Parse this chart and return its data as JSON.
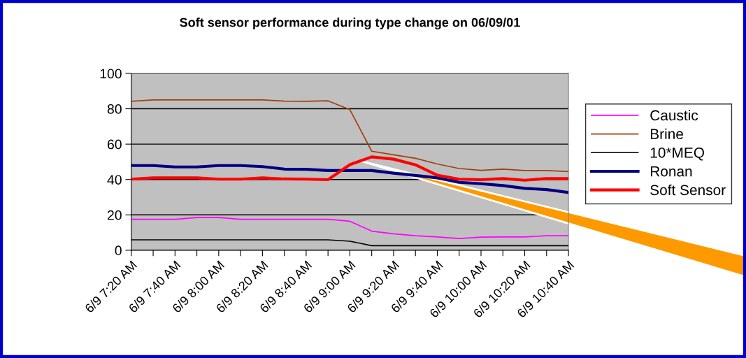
{
  "chart_data": {
    "type": "line",
    "title": "Soft sensor performance during type change on 06/09/01",
    "categories": [
      "6/9 7:20 AM",
      null,
      "6/9 7:40 AM",
      null,
      "6/9 8:00 AM",
      null,
      "6/9 8:20 AM",
      null,
      "6/9 8:40 AM",
      null,
      "6/9 9:00 AM",
      null,
      "6/9 9:20 AM",
      null,
      "6/9 9:40 AM",
      null,
      "6/9 10:00 AM",
      null,
      "6/9 10:20 AM",
      null,
      "6/9 10:40 AM"
    ],
    "ylim": [
      0,
      100
    ],
    "yticks": [
      0,
      20,
      40,
      60,
      80,
      100
    ],
    "grid": "y",
    "legend": "right",
    "marker": "none",
    "line_style": "solid",
    "series": [
      {
        "name": "Caustic",
        "color": "#ff00ff",
        "values": [
          17.5,
          17.5,
          17.5,
          18.5,
          18.5,
          17.5,
          17.5,
          17.5,
          17.5,
          17.5,
          16.4,
          10.8,
          9.3,
          8.2,
          7.5,
          6.6,
          7.4,
          7.5,
          7.5,
          8.2,
          8.2
        ]
      },
      {
        "name": "Brine",
        "color": "#a0400a",
        "values": [
          84.2,
          85,
          85,
          85,
          85,
          85,
          85,
          84.3,
          84.2,
          84.5,
          79.5,
          56,
          54,
          52,
          48.8,
          46.2,
          45.2,
          45.9,
          45.1,
          45.1,
          44.5
        ]
      },
      {
        "name": "10*MEQ",
        "color": "#000000",
        "values": [
          5.9,
          5.9,
          5.9,
          5.9,
          5.9,
          5.9,
          5.9,
          5.9,
          5.9,
          5.9,
          5.1,
          2.6,
          2.6,
          2.6,
          2.6,
          2.6,
          2.6,
          2.6,
          2.6,
          2.6,
          2.6
        ]
      },
      {
        "name": "Ronan",
        "color": "#000080",
        "values": [
          47.9,
          47.9,
          47.1,
          47.1,
          47.9,
          47.9,
          47.3,
          45.9,
          45.8,
          45.1,
          45.1,
          45.1,
          43.6,
          42.3,
          40.9,
          38.4,
          37.6,
          36.6,
          35,
          34.3,
          32.7
        ]
      },
      {
        "name": "Soft Sensor",
        "color": "#ff0000",
        "values": [
          40.2,
          40.9,
          40.9,
          40.9,
          40.2,
          40.2,
          40.9,
          40.3,
          40.2,
          39.9,
          48.4,
          52.8,
          51.5,
          48.3,
          42.4,
          40.2,
          39.9,
          40.5,
          39.6,
          40.5,
          40.5
        ]
      }
    ]
  }
}
